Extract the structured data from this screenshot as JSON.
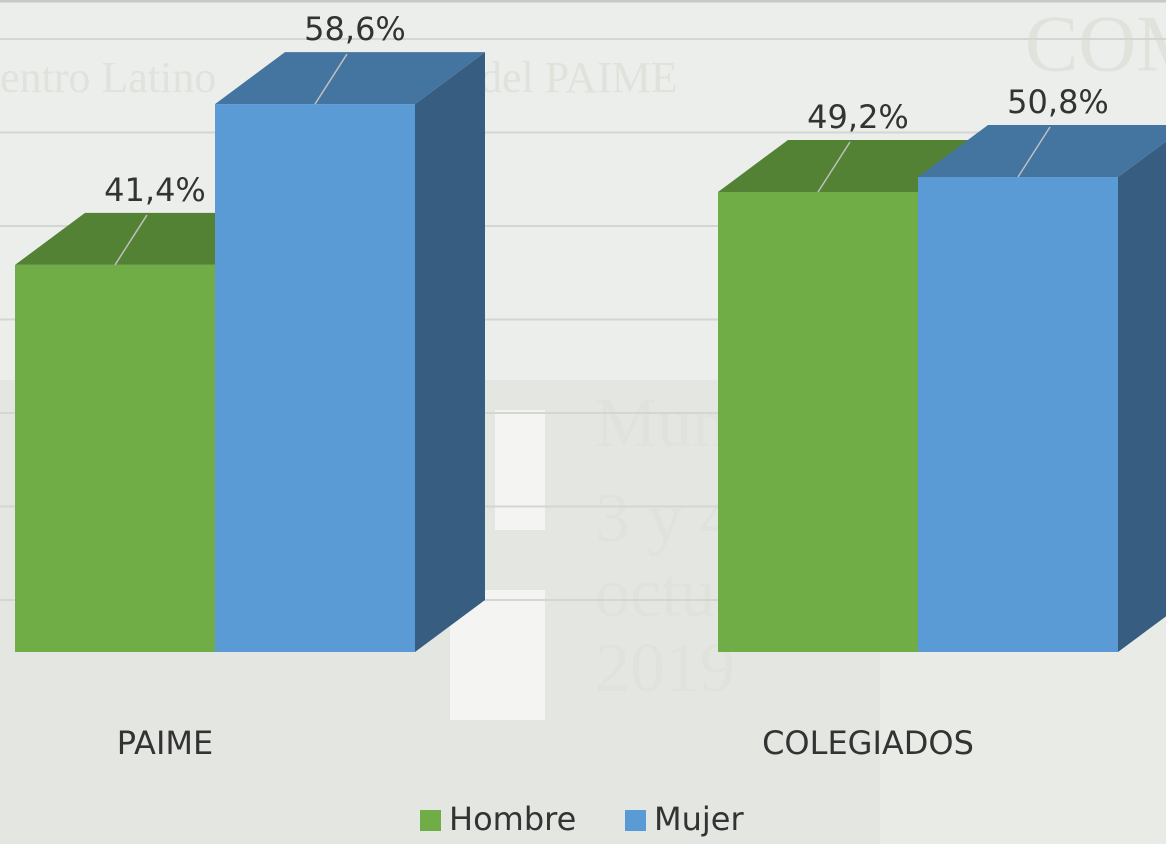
{
  "chart_data": {
    "type": "bar3d",
    "categories": [
      "PAIME",
      "COLEGIADOS"
    ],
    "series": [
      {
        "name": "Hombre",
        "color": "#70ad47",
        "values": [
          41.4,
          49.2
        ],
        "value_labels": [
          "41,4%",
          "49,2%"
        ]
      },
      {
        "name": "Mujer",
        "color": "#5b9bd5",
        "values": [
          58.6,
          50.8
        ],
        "value_labels": [
          "58,6%",
          "50,8%"
        ]
      }
    ],
    "ylim": [
      0,
      60
    ],
    "yticks": [
      0,
      10,
      20,
      30,
      40,
      50,
      60
    ],
    "grid": true,
    "legend": "bottom",
    "background_texts": [
      "entro Latino",
      "del PAIME",
      "COM",
      "Mun",
      "3 y 4",
      "octu",
      "2019"
    ]
  }
}
